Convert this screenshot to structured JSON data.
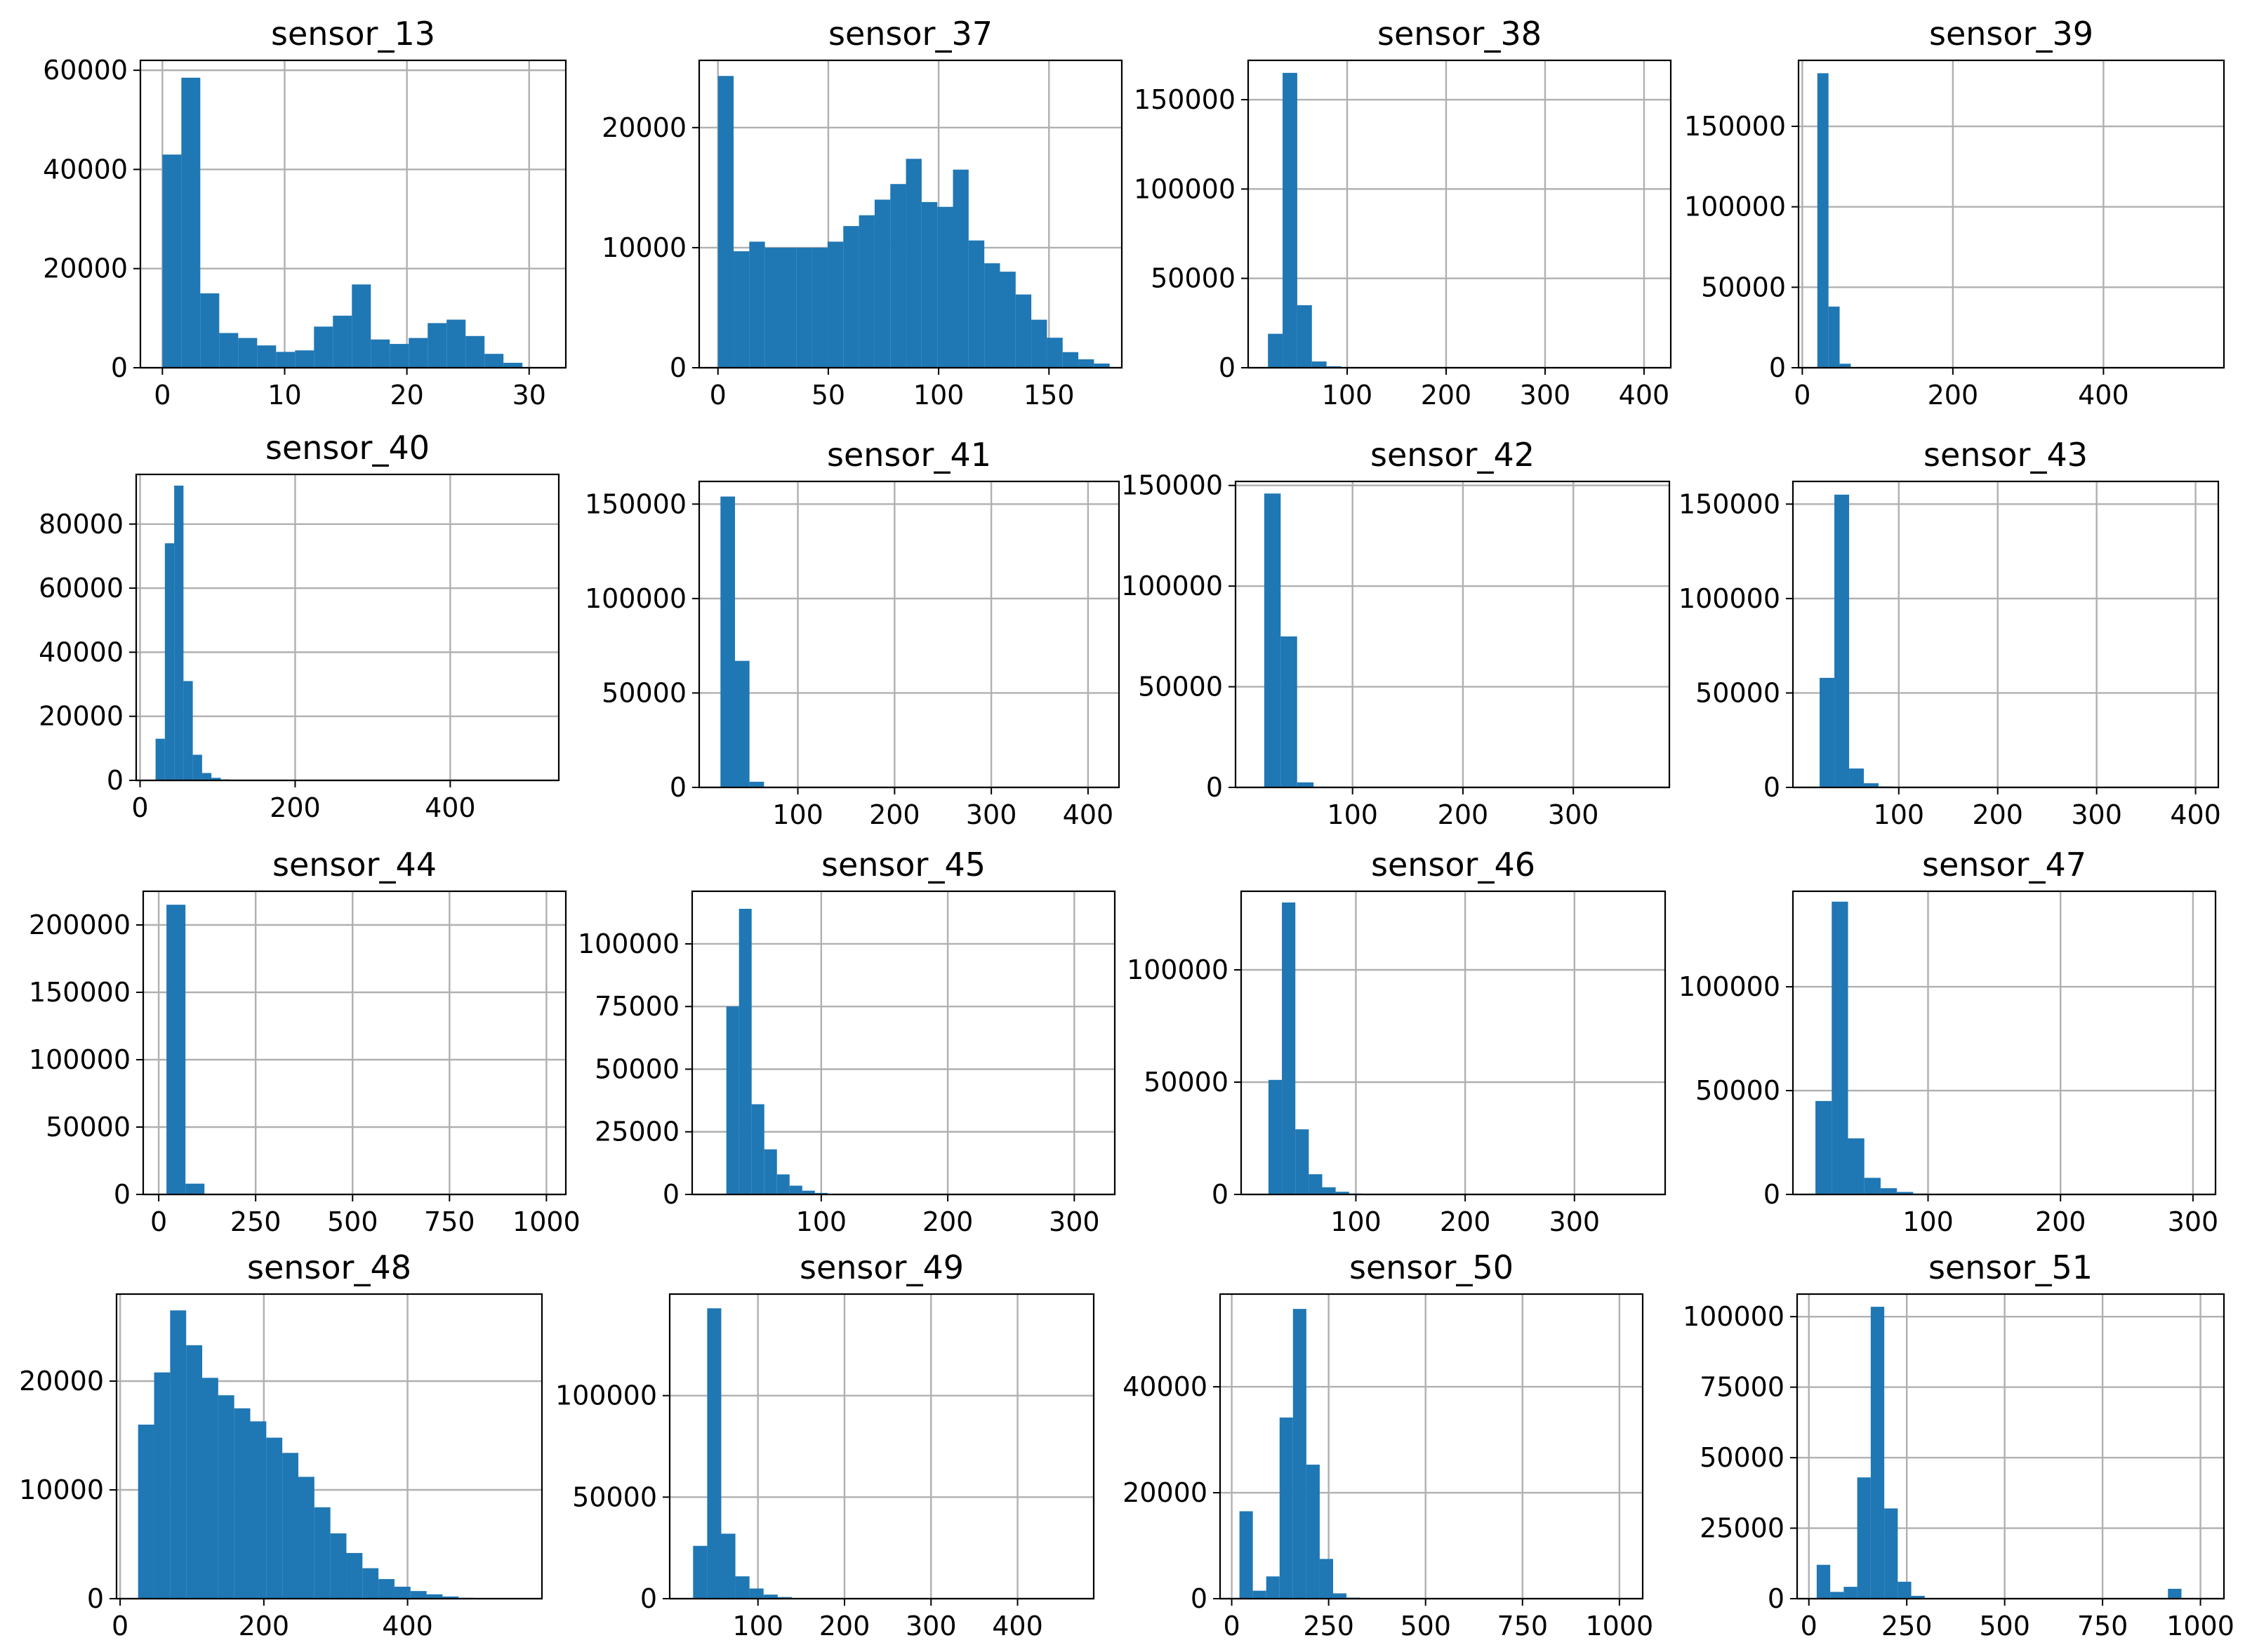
{
  "chart_data": [
    {
      "type": "bar",
      "title": "sensor_13",
      "x_start": 0,
      "bin_width": 1.55,
      "ylim": [
        0,
        62000
      ],
      "xlim": [
        -1.8,
        33
      ],
      "values": [
        43000,
        58500,
        15000,
        7000,
        6000,
        4500,
        3200,
        3500,
        8300,
        10500,
        16800,
        5700,
        4800,
        6000,
        9000,
        9700,
        6400,
        2800,
        1000,
        120
      ],
      "xticks": [
        0,
        10,
        20,
        30
      ],
      "xtick_labels": [
        "0",
        "10",
        "20",
        "30"
      ],
      "yticks": [
        0,
        20000,
        40000,
        60000
      ],
      "ytick_labels": [
        "0",
        "20000",
        "40000",
        "60000"
      ]
    },
    {
      "type": "bar",
      "title": "sensor_37",
      "x_start": 0,
      "bin_width": 7.1,
      "ylim": [
        0,
        25600
      ],
      "xlim": [
        -8.5,
        183
      ],
      "values": [
        24300,
        9700,
        10500,
        10000,
        10000,
        10000,
        10000,
        10500,
        11800,
        12700,
        14000,
        15300,
        17400,
        13800,
        13400,
        16500,
        10600,
        8700,
        8000,
        6100,
        4000,
        2500,
        1300,
        700,
        350
      ],
      "xticks": [
        0,
        50,
        100,
        150
      ],
      "xtick_labels": [
        "0",
        "50",
        "100",
        "150"
      ],
      "yticks": [
        0,
        10000,
        20000
      ],
      "ytick_labels": [
        "0",
        "10000",
        "20000"
      ]
    },
    {
      "type": "bar",
      "title": "sensor_38",
      "x_start": 20,
      "bin_width": 14.8,
      "ylim": [
        0,
        172000
      ],
      "xlim": [
        0,
        427
      ],
      "values": [
        19000,
        165000,
        35000,
        3500,
        800,
        200,
        100,
        50,
        30,
        20,
        10,
        10,
        10,
        10,
        10,
        10,
        5,
        5,
        5,
        5
      ],
      "xticks": [
        100,
        200,
        300,
        400
      ],
      "xtick_labels": [
        "100",
        "200",
        "300",
        "400"
      ],
      "yticks": [
        0,
        50000,
        100000,
        150000
      ],
      "ytick_labels": [
        "0",
        "50000",
        "100000",
        "150000"
      ]
    },
    {
      "type": "bar",
      "title": "sensor_39",
      "x_start": 20,
      "bin_width": 14.8,
      "ylim": [
        0,
        191000
      ],
      "xlim": [
        -5,
        560
      ],
      "values": [
        183000,
        38000,
        2500,
        300,
        100,
        50,
        20,
        10,
        5,
        5
      ],
      "xticks": [
        0,
        200,
        400
      ],
      "xtick_labels": [
        "0",
        "200",
        "400"
      ],
      "yticks": [
        0,
        50000,
        100000,
        150000
      ],
      "ytick_labels": [
        "0",
        "50000",
        "100000",
        "150000"
      ]
    },
    {
      "type": "bar",
      "title": "sensor_40",
      "x_start": 20,
      "bin_width": 12.0,
      "ylim": [
        0,
        95500
      ],
      "xlim": [
        -5,
        540
      ],
      "values": [
        13000,
        74000,
        92000,
        31000,
        8000,
        2300,
        800,
        300,
        150,
        80,
        40,
        20,
        10,
        10,
        5,
        5
      ],
      "xticks": [
        0,
        200,
        400
      ],
      "xtick_labels": [
        "0",
        "200",
        "400"
      ],
      "yticks": [
        0,
        20000,
        40000,
        60000,
        80000
      ],
      "ytick_labels": [
        "0",
        "20000",
        "40000",
        "60000",
        "80000"
      ]
    },
    {
      "type": "bar",
      "title": "sensor_41",
      "x_start": 20,
      "bin_width": 15.0,
      "ylim": [
        0,
        162000
      ],
      "xlim": [
        -2,
        432
      ],
      "values": [
        154000,
        67000,
        3000,
        300,
        100,
        50,
        20,
        10,
        5,
        5
      ],
      "xticks": [
        100,
        200,
        300,
        400
      ],
      "xtick_labels": [
        "100",
        "200",
        "300",
        "400"
      ],
      "yticks": [
        0,
        50000,
        100000,
        150000
      ],
      "ytick_labels": [
        "0",
        "50000",
        "100000",
        "150000"
      ]
    },
    {
      "type": "bar",
      "title": "sensor_42",
      "x_start": 20,
      "bin_width": 14.9,
      "ylim": [
        0,
        152000
      ],
      "xlim": [
        -6,
        387
      ],
      "values": [
        146000,
        75000,
        2500,
        300,
        100,
        50,
        20,
        10,
        5,
        5
      ],
      "xticks": [
        100,
        200,
        300
      ],
      "xtick_labels": [
        "100",
        "200",
        "300"
      ],
      "yticks": [
        0,
        50000,
        100000,
        150000
      ],
      "ytick_labels": [
        "0",
        "50000",
        "100000",
        "150000"
      ]
    },
    {
      "type": "bar",
      "title": "sensor_43",
      "x_start": 20,
      "bin_width": 14.9,
      "ylim": [
        0,
        162000
      ],
      "xlim": [
        -7,
        423
      ],
      "values": [
        58000,
        155000,
        10000,
        2200,
        500,
        150,
        50,
        20,
        10,
        5
      ],
      "xticks": [
        100,
        200,
        300,
        400
      ],
      "xtick_labels": [
        "100",
        "200",
        "300",
        "400"
      ],
      "yticks": [
        0,
        50000,
        100000,
        150000
      ],
      "ytick_labels": [
        "0",
        "50000",
        "100000",
        "150000"
      ]
    },
    {
      "type": "bar",
      "title": "sensor_44",
      "x_start": 20,
      "bin_width": 49,
      "ylim": [
        0,
        225000
      ],
      "xlim": [
        -40,
        1050
      ],
      "values": [
        215000,
        8000,
        500,
        100,
        50,
        20,
        10,
        5,
        5,
        5
      ],
      "xticks": [
        0,
        250,
        500,
        750,
        1000
      ],
      "xtick_labels": [
        "0",
        "250",
        "500",
        "750",
        "1000"
      ],
      "yticks": [
        0,
        50000,
        100000,
        150000,
        200000
      ],
      "ytick_labels": [
        "0",
        "50000",
        "100000",
        "150000",
        "200000"
      ]
    },
    {
      "type": "bar",
      "title": "sensor_45",
      "x_start": 25,
      "bin_width": 10.0,
      "ylim": [
        0,
        121000
      ],
      "xlim": [
        -2,
        332
      ],
      "values": [
        75000,
        114000,
        36000,
        18000,
        8000,
        3500,
        1500,
        600,
        200,
        100,
        50,
        20,
        10,
        5,
        5
      ],
      "xticks": [
        100,
        200,
        300
      ],
      "xtick_labels": [
        "100",
        "200",
        "300"
      ],
      "yticks": [
        0,
        25000,
        50000,
        75000,
        100000
      ],
      "ytick_labels": [
        "0",
        "25000",
        "50000",
        "75000",
        "100000"
      ]
    },
    {
      "type": "bar",
      "title": "sensor_46",
      "x_start": 20,
      "bin_width": 12.3,
      "ylim": [
        0,
        135000
      ],
      "xlim": [
        -5,
        383
      ],
      "values": [
        51000,
        130000,
        29000,
        9000,
        3200,
        1200,
        400,
        150,
        50,
        20,
        10,
        5
      ],
      "xticks": [
        100,
        200,
        300
      ],
      "xtick_labels": [
        "100",
        "200",
        "300"
      ],
      "yticks": [
        0,
        50000,
        100000
      ],
      "ytick_labels": [
        "0",
        "50000",
        "100000"
      ]
    },
    {
      "type": "bar",
      "title": "sensor_47",
      "x_start": 15,
      "bin_width": 12.3,
      "ylim": [
        0,
        146000
      ],
      "xlim": [
        -2,
        317
      ],
      "values": [
        45000,
        141000,
        27000,
        8000,
        3000,
        1200,
        400,
        150,
        50,
        20,
        10,
        5
      ],
      "xticks": [
        100,
        200,
        300
      ],
      "xtick_labels": [
        "100",
        "200",
        "300"
      ],
      "yticks": [
        0,
        50000,
        100000
      ],
      "ytick_labels": [
        "0",
        "50000",
        "100000"
      ]
    },
    {
      "type": "bar",
      "title": "sensor_48",
      "x_start": 25,
      "bin_width": 22.3,
      "ylim": [
        0,
        28000
      ],
      "xlim": [
        -5,
        587
      ],
      "values": [
        16000,
        20800,
        26500,
        23300,
        20300,
        18700,
        17500,
        16300,
        14800,
        13400,
        11200,
        8400,
        6000,
        4200,
        2800,
        1800,
        1100,
        700,
        400,
        200,
        80
      ],
      "xticks": [
        0,
        200,
        400
      ],
      "xtick_labels": [
        "0",
        "200",
        "400"
      ],
      "yticks": [
        0,
        10000,
        20000
      ],
      "ytick_labels": [
        "0",
        "10000",
        "20000"
      ]
    },
    {
      "type": "bar",
      "title": "sensor_49",
      "x_start": 25,
      "bin_width": 16.3,
      "ylim": [
        0,
        150000
      ],
      "xlim": [
        -2,
        488
      ],
      "values": [
        26000,
        143000,
        32000,
        11000,
        5000,
        2000,
        800,
        300,
        100,
        50,
        20,
        10,
        5
      ],
      "xticks": [
        100,
        200,
        300,
        400
      ],
      "xtick_labels": [
        "100",
        "200",
        "300",
        "400"
      ],
      "yticks": [
        0,
        50000,
        100000
      ],
      "ytick_labels": [
        "0",
        "50000",
        "100000"
      ]
    },
    {
      "type": "bar",
      "title": "sensor_50",
      "x_start": 20,
      "bin_width": 34.5,
      "ylim": [
        0,
        57500
      ],
      "xlim": [
        -30,
        1060
      ],
      "values": [
        16500,
        1500,
        4200,
        34200,
        54700,
        25300,
        7500,
        1000,
        200,
        50,
        20,
        10,
        5,
        5
      ],
      "xticks": [
        0,
        250,
        500,
        750,
        1000
      ],
      "xtick_labels": [
        "0",
        "250",
        "500",
        "750",
        "1000"
      ],
      "yticks": [
        0,
        20000,
        40000
      ],
      "ytick_labels": [
        "0",
        "20000",
        "40000"
      ]
    },
    {
      "type": "bar",
      "title": "sensor_51",
      "x_start": 20,
      "bin_width": 34.5,
      "ylim": [
        0,
        108000
      ],
      "xlim": [
        -30,
        1060
      ],
      "values": [
        12000,
        2400,
        4200,
        43000,
        103500,
        32000,
        6000,
        1000,
        200,
        100,
        50,
        20,
        10,
        10,
        10,
        10,
        10,
        10,
        10,
        10,
        10,
        10,
        10,
        10,
        10,
        10,
        3500
      ],
      "xticks": [
        0,
        250,
        500,
        750,
        1000
      ],
      "xtick_labels": [
        "0",
        "250",
        "500",
        "750",
        "1000"
      ],
      "yticks": [
        0,
        25000,
        50000,
        75000,
        100000
      ],
      "ytick_labels": [
        "0",
        "25000",
        "50000",
        "75000",
        "100000"
      ]
    }
  ]
}
